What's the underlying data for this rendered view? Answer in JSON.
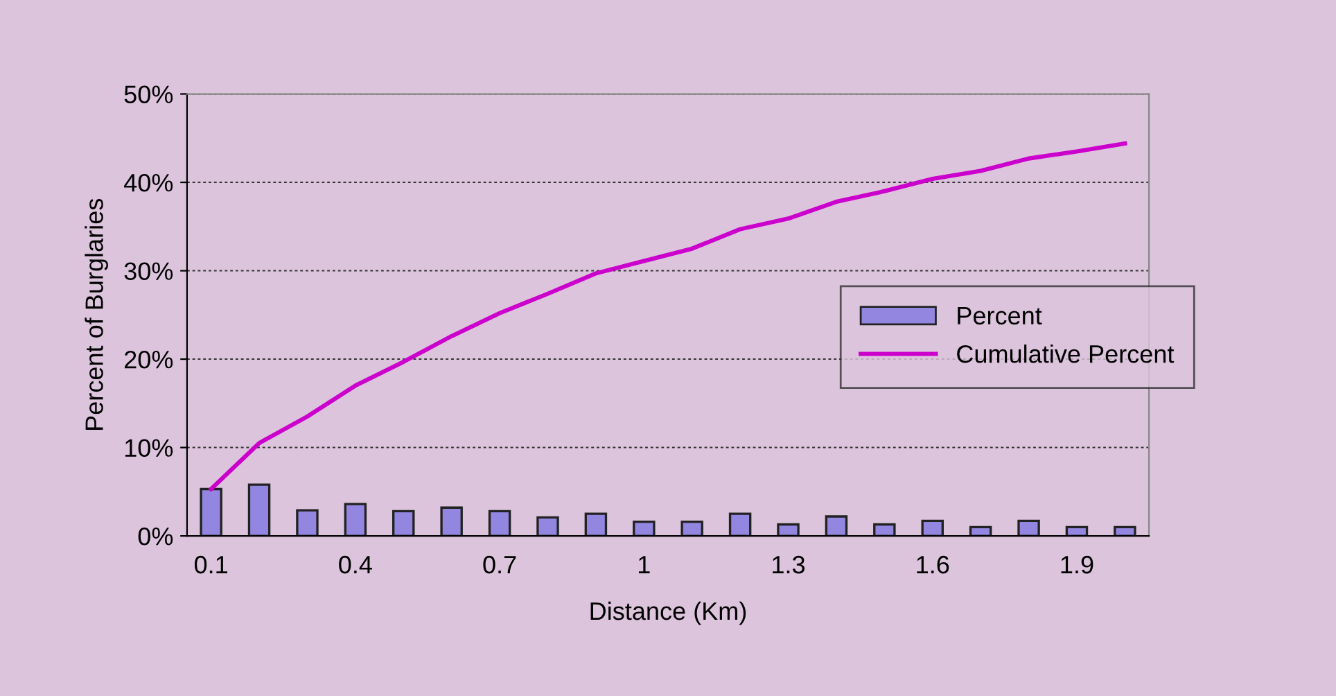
{
  "chart_data": {
    "type": "bar",
    "xlabel": "Distance (Km)",
    "ylabel": "Percent of Burglaries",
    "categories": [
      "0.1",
      null,
      null,
      "0.4",
      null,
      null,
      "0.7",
      null,
      null,
      "1",
      null,
      null,
      "1.3",
      null,
      null,
      "1.6",
      null,
      null,
      "1.9",
      null
    ],
    "series": [
      {
        "name": "Percent",
        "color": "#9386e0",
        "values": [
          5.3,
          5.8,
          2.9,
          3.6,
          2.8,
          3.2,
          2.8,
          2.1,
          2.5,
          1.6,
          1.6,
          2.5,
          1.3,
          2.2,
          1.3,
          1.7,
          1.0,
          1.7,
          1.0,
          1.0
        ]
      },
      {
        "name": "Cumulative Percent",
        "type": "line",
        "color": "#cc00cc",
        "values": [
          5.3,
          10.5,
          13.5,
          17.0,
          19.7,
          22.6,
          25.2,
          27.4,
          29.7,
          31.1,
          32.5,
          34.7,
          35.9,
          37.8,
          39.0,
          40.4,
          41.3,
          42.7,
          43.5,
          44.4
        ]
      }
    ],
    "ylim": [
      0,
      50
    ],
    "yticks": [
      {
        "value": 0,
        "label": "0%"
      },
      {
        "value": 10,
        "label": "10%"
      },
      {
        "value": 20,
        "label": "20%"
      },
      {
        "value": 30,
        "label": "30%"
      },
      {
        "value": 40,
        "label": "40%"
      },
      {
        "value": 50,
        "label": "50%"
      }
    ],
    "grid": "y",
    "legend": "right",
    "marker": "none",
    "line_style": "solid"
  }
}
